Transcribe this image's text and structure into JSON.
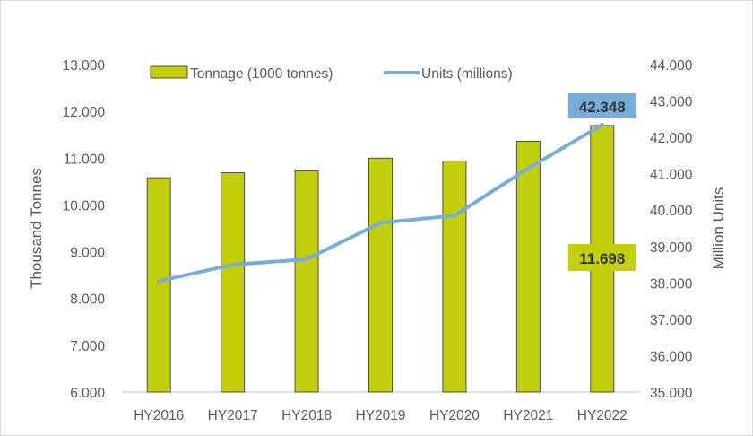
{
  "chart_data": {
    "type": "bar",
    "categories": [
      "HY2016",
      "HY2017",
      "HY2018",
      "HY2019",
      "HY2020",
      "HY2021",
      "HY2022"
    ],
    "series": [
      {
        "name": "Tonnage (1000 tonnes)",
        "type": "bar",
        "axis": "left",
        "values": [
          10.58,
          10.69,
          10.73,
          11.0,
          10.94,
          11.36,
          11.698
        ],
        "color": "#c3ce0c"
      },
      {
        "name": "Units (millions)",
        "type": "line",
        "axis": "right",
        "values": [
          38.05,
          38.5,
          38.65,
          39.65,
          39.85,
          41.15,
          42.348
        ],
        "color": "#78acd9"
      }
    ],
    "xlabel": "",
    "ylabel": "Thousand Tonnes",
    "y2label": "Million Units",
    "ylim": [
      6,
      13
    ],
    "y2lim": [
      35,
      44
    ],
    "yticks": [
      "6.000",
      "7.000",
      "8.000",
      "9.000",
      "10.000",
      "11.000",
      "12.000",
      "13.000"
    ],
    "y2ticks": [
      "35.000",
      "36.000",
      "37.000",
      "38.000",
      "39.000",
      "40.000",
      "41.000",
      "42.000",
      "43.000",
      "44.000"
    ],
    "annotations": [
      {
        "text": "42.348",
        "series": "Units (millions)",
        "category": "HY2022",
        "bg": "#78acd9"
      },
      {
        "text": "11.698",
        "series": "Tonnage (1000 tonnes)",
        "category": "HY2022",
        "bg": "#c3ce0c"
      }
    ],
    "legend_position": "top",
    "grid": false
  }
}
